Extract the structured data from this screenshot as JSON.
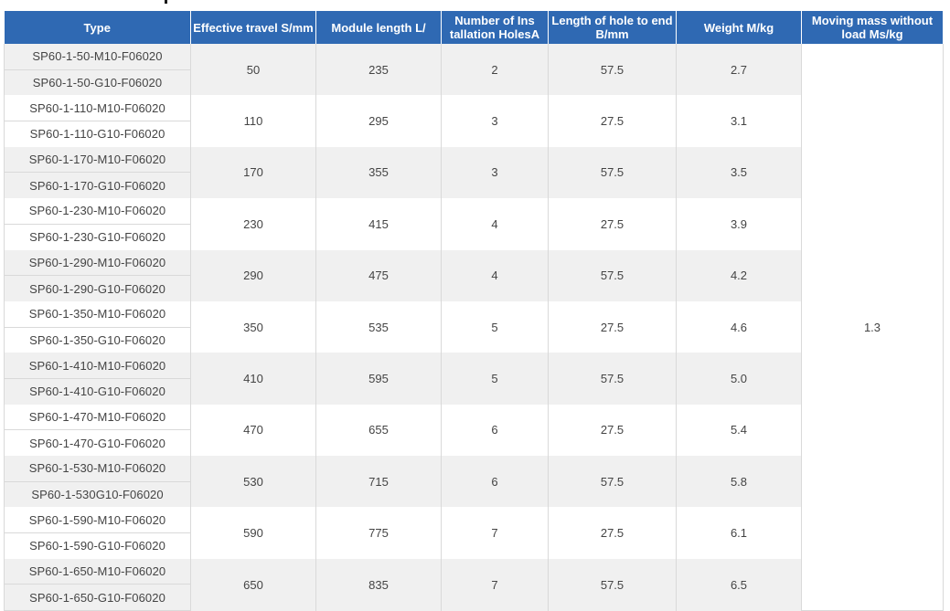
{
  "table": {
    "headers": [
      "Type",
      "Effective travel S/mm",
      "Module length L/",
      "Number of Ins tallation HolesA",
      "Length of hole to end B/mm",
      "Weight M/kg",
      "Moving mass without load Ms/kg"
    ],
    "moving_mass": "1.3",
    "groups": [
      {
        "types": [
          "SP60-1-50-M10-F06020",
          "SP60-1-50-G10-F06020"
        ],
        "travel": "50",
        "length": "235",
        "holes": "2",
        "hole_end": "57.5",
        "weight": "2.7"
      },
      {
        "types": [
          "SP60-1-110-M10-F06020",
          "SP60-1-110-G10-F06020"
        ],
        "travel": "110",
        "length": "295",
        "holes": "3",
        "hole_end": "27.5",
        "weight": "3.1"
      },
      {
        "types": [
          "SP60-1-170-M10-F06020",
          "SP60-1-170-G10-F06020"
        ],
        "travel": "170",
        "length": "355",
        "holes": "3",
        "hole_end": "57.5",
        "weight": "3.5"
      },
      {
        "types": [
          "SP60-1-230-M10-F06020",
          "SP60-1-230-G10-F06020"
        ],
        "travel": "230",
        "length": "415",
        "holes": "4",
        "hole_end": "27.5",
        "weight": "3.9"
      },
      {
        "types": [
          "SP60-1-290-M10-F06020",
          "SP60-1-290-G10-F06020"
        ],
        "travel": "290",
        "length": "475",
        "holes": "4",
        "hole_end": "57.5",
        "weight": "4.2"
      },
      {
        "types": [
          "SP60-1-350-M10-F06020",
          "SP60-1-350-G10-F06020"
        ],
        "travel": "350",
        "length": "535",
        "holes": "5",
        "hole_end": "27.5",
        "weight": "4.6"
      },
      {
        "types": [
          "SP60-1-410-M10-F06020",
          "SP60-1-410-G10-F06020"
        ],
        "travel": "410",
        "length": "595",
        "holes": "5",
        "hole_end": "57.5",
        "weight": "5.0"
      },
      {
        "types": [
          "SP60-1-470-M10-F06020",
          "SP60-1-470-G10-F06020"
        ],
        "travel": "470",
        "length": "655",
        "holes": "6",
        "hole_end": "27.5",
        "weight": "5.4"
      },
      {
        "types": [
          "SP60-1-530-M10-F06020",
          "SP60-1-530G10-F06020"
        ],
        "travel": "530",
        "length": "715",
        "holes": "6",
        "hole_end": "57.5",
        "weight": "5.8"
      },
      {
        "types": [
          "SP60-1-590-M10-F06020",
          "SP60-1-590-G10-F06020"
        ],
        "travel": "590",
        "length": "775",
        "holes": "7",
        "hole_end": "27.5",
        "weight": "6.1"
      },
      {
        "types": [
          "SP60-1-650-M10-F06020",
          "SP60-1-650-G10-F06020"
        ],
        "travel": "650",
        "length": "835",
        "holes": "7",
        "hole_end": "57.5",
        "weight": "6.5"
      }
    ]
  },
  "colors": {
    "header_bg": "#2f69b3",
    "stripe_bg": "#f0f0f0"
  }
}
